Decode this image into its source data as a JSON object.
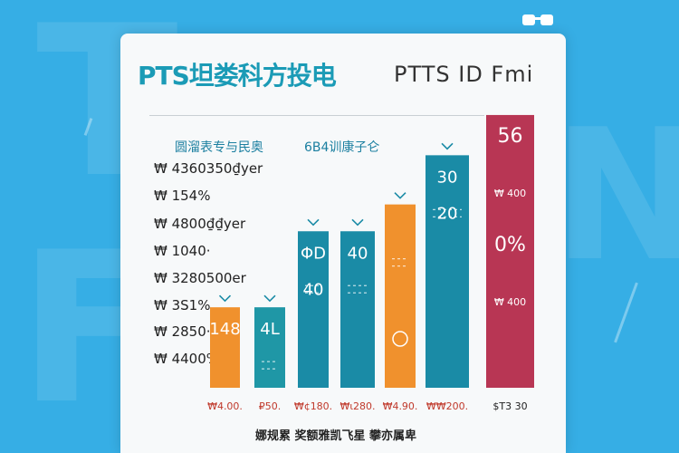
{
  "chart_data": {
    "type": "bar",
    "title": "PTS坦娄科方投电",
    "subtitle": "PTTS ID Fmi",
    "legend": [
      "圆溜表专与民奥",
      "6B4训康子仑"
    ],
    "y_tick_labels": [
      "₩ 4360350₫yer",
      "₩ 154%",
      "₩ 4800₫₫yer",
      "₩ 1040·",
      "₩ 3280500er",
      "₩ 3S1%",
      "₩ 2850·",
      "₩ 4400%"
    ],
    "categories": [
      "₩4.00.",
      "₽50.",
      "₩¢180.",
      "₩ι280.",
      "₩4.90.",
      "₩₩200.",
      "$T3 30"
    ],
    "values": [
      18,
      18,
      35,
      35,
      41,
      52,
      61
    ],
    "colors": [
      "#f0912d",
      "#1f97a6",
      "#1a8ba6",
      "#1a8ba6",
      "#f0912d",
      "#1a8ba6",
      "#b83654"
    ],
    "bar_labels": [
      [
        "148",
        "",
        ""
      ],
      [
        "4L",
        "",
        ""
      ],
      [
        "ΦD",
        "40",
        ""
      ],
      [
        "40",
        "",
        ""
      ],
      [
        "",
        "",
        ""
      ],
      [
        "30",
        "20",
        ""
      ],
      [
        "56",
        "₩ 400",
        "0%",
        "₩ 400"
      ]
    ],
    "ylim": [
      0,
      62
    ]
  },
  "footer": "娜规累 奖额雅凯飞星 攀亦属卑",
  "accent": "#36aee5"
}
